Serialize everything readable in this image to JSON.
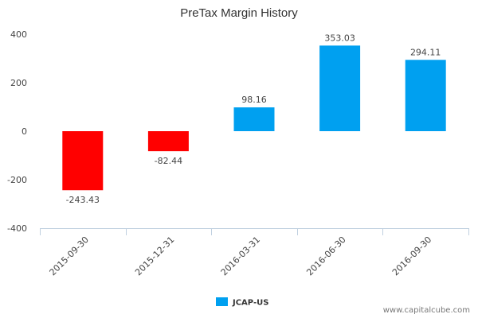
{
  "chart_data": {
    "type": "bar",
    "title": "PreTax Margin History",
    "xlabel": "",
    "ylabel": "",
    "categories": [
      "2015-09-30",
      "2015-12-31",
      "2016-03-31",
      "2016-06-30",
      "2016-09-30"
    ],
    "series": [
      {
        "name": "JCAP-US",
        "values": [
          -243.43,
          -82.44,
          98.16,
          353.03,
          294.11
        ],
        "data_labels": [
          "-243.43",
          "-82.44",
          "98.16",
          "353.03",
          "294.11"
        ]
      }
    ],
    "ylim": [
      -400,
      400
    ],
    "yticks": [
      400,
      200,
      0,
      -200,
      -400
    ],
    "ytick_labels": [
      "400",
      "200",
      "0",
      "-200",
      "-400"
    ],
    "grid": false,
    "legend_position": "bottom-center",
    "colors": {
      "positive": "#00a0f0",
      "negative": "#ff0000",
      "legend_swatch": "#00a0f0",
      "axis_line": "#c0d0e0"
    }
  },
  "watermark": "www.capitalcube.com"
}
